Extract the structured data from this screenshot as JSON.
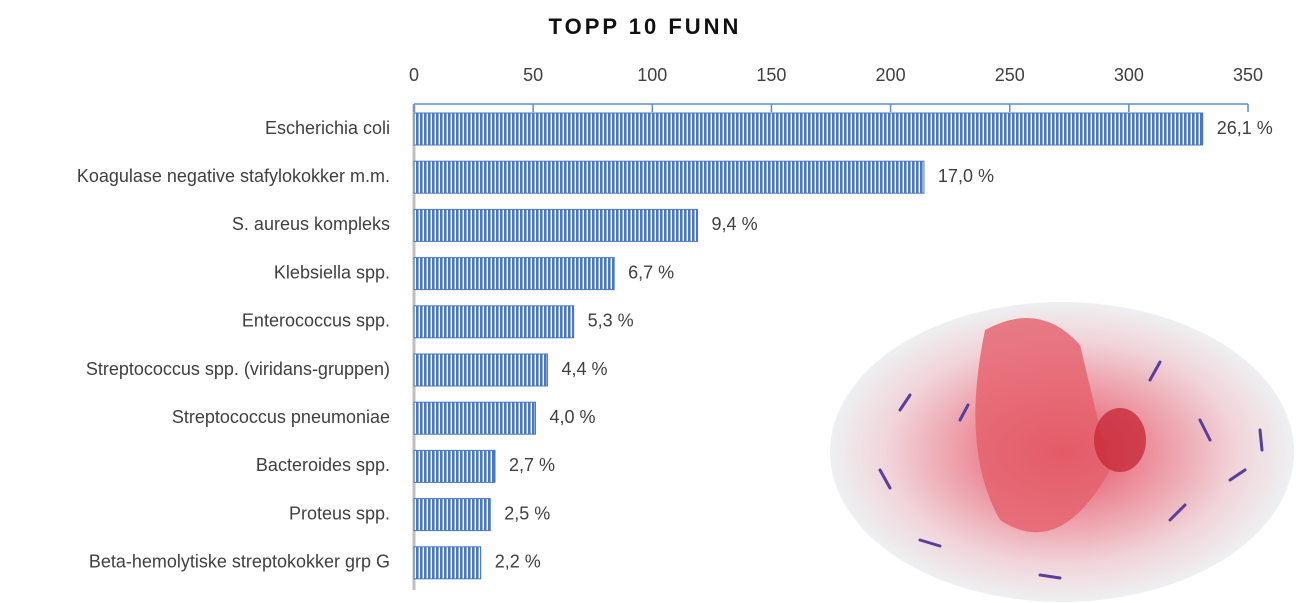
{
  "chart_data": {
    "type": "bar",
    "orientation": "horizontal",
    "title": "TOPP 10 FUNN",
    "categories": [
      "Escherichia coli",
      "Koagulase negative stafylokokker m.m.",
      "S. aureus kompleks",
      "Klebsiella spp.",
      "Enterococcus spp.",
      "Streptococcus spp. (viridans-gruppen)",
      "Streptococcus pneumoniae",
      "Bacteroides spp.",
      "Proteus spp.",
      "Beta-hemolytiske streptokokker grp G"
    ],
    "values": [
      331,
      214,
      119,
      84,
      67,
      56,
      51,
      34,
      32,
      28
    ],
    "value_labels": [
      "26,1 %",
      "17,0 %",
      "9,4 %",
      "6,7 %",
      "5,3 %",
      "4,4 %",
      "4,0 %",
      "2,7 %",
      "2,5 %",
      "2,2 %"
    ],
    "color": "#4a78c0",
    "xlim": [
      0,
      350
    ],
    "xticks": [
      0,
      50,
      100,
      150,
      200,
      250,
      300,
      350
    ]
  }
}
